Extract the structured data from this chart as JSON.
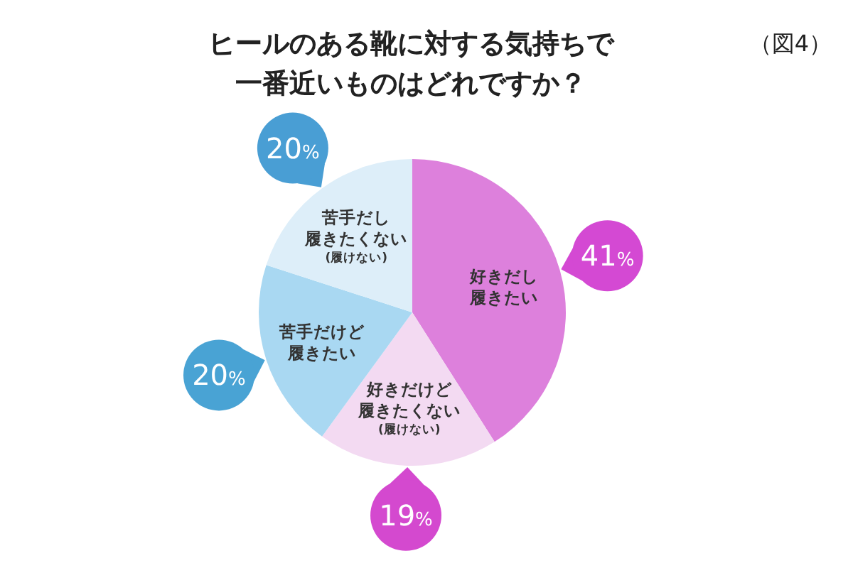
{
  "chart_data": {
    "type": "pie",
    "title": "ヒールのある靴に対する気持ちで一番近いものはどれですか？",
    "annotations": [
      "（図4）"
    ],
    "categories": [
      "好きだし履きたい",
      "好きだけど履きたくない(履けない)",
      "苦手だけど履きたい",
      "苦手だし履きたくない(履けない)"
    ],
    "values": [
      41,
      19,
      20,
      20
    ],
    "value_labels": [
      "41%",
      "19%",
      "20%",
      "20%"
    ],
    "colors": [
      "#dd80dc",
      "#f3daf2",
      "#a9d8f2",
      "#ddeef9"
    ]
  }
}
